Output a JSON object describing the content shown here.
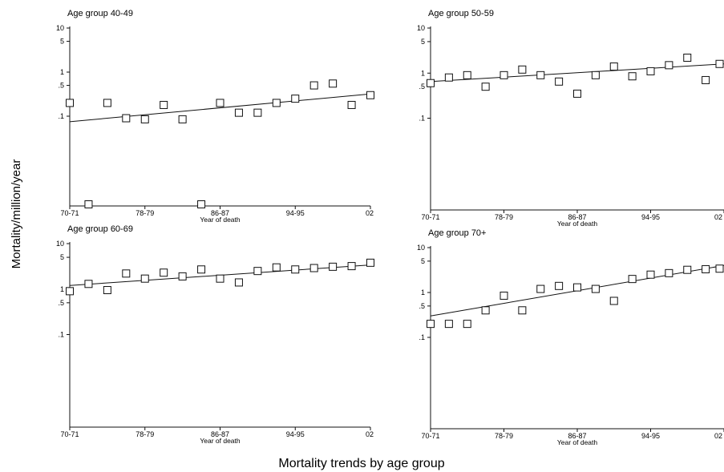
{
  "figure": {
    "ylabel": "Mortality/million/year",
    "caption": "Mortality trends by age group"
  },
  "chart_data": [
    {
      "type": "scatter",
      "title": "Age group 40-49",
      "xlabel": "Year of death",
      "x_ticks": [
        "70-71",
        "78-79",
        "86-87",
        "94-95",
        "02"
      ],
      "y_ticks": [
        "10",
        "5",
        "1",
        ".5",
        ".1"
      ],
      "y_scale": "log",
      "ylim": [
        0.001,
        10
      ],
      "grid": false,
      "x": [
        1,
        2,
        3,
        4,
        5,
        6,
        7,
        8,
        9,
        10,
        11,
        12,
        13,
        14,
        15,
        16,
        17
      ],
      "values": [
        0.2,
        0.001,
        0.2,
        0.09,
        0.085,
        0.18,
        0.085,
        0.001,
        0.2,
        0.12,
        0.12,
        0.2,
        0.25,
        0.5,
        0.55,
        0.18,
        0.3
      ],
      "trend": [
        0.075,
        0.32
      ]
    },
    {
      "type": "scatter",
      "title": "Age group 50-59",
      "xlabel": "Year of death",
      "x_ticks": [
        "70-71",
        "78-79",
        "86-87",
        "94-95",
        "02"
      ],
      "y_ticks": [
        "10",
        "5",
        "1",
        ".5",
        ".1"
      ],
      "y_scale": "log",
      "ylim": [
        0.001,
        10
      ],
      "grid": false,
      "x": [
        1,
        2,
        3,
        4,
        5,
        6,
        7,
        8,
        9,
        10,
        11,
        12,
        13,
        14,
        15,
        16,
        17
      ],
      "values": [
        0.6,
        0.8,
        0.9,
        0.5,
        0.9,
        1.2,
        0.9,
        0.65,
        0.35,
        0.9,
        1.4,
        0.85,
        1.1,
        1.5,
        2.2,
        0.7,
        1.6
      ],
      "trend": [
        0.65,
        1.6
      ]
    },
    {
      "type": "scatter",
      "title": "Age group 60-69",
      "xlabel": "Year of death",
      "x_ticks": [
        "70-71",
        "78-79",
        "86-87",
        "94-95",
        "02"
      ],
      "y_ticks": [
        "10",
        "5",
        "1",
        ".5",
        ".1"
      ],
      "y_scale": "log",
      "ylim": [
        0.001,
        10
      ],
      "grid": false,
      "x": [
        1,
        2,
        3,
        4,
        5,
        6,
        7,
        8,
        9,
        10,
        11,
        12,
        13,
        14,
        15,
        16,
        17
      ],
      "values": [
        0.9,
        1.3,
        0.95,
        2.2,
        1.7,
        2.3,
        1.9,
        2.7,
        1.7,
        1.4,
        2.5,
        3.0,
        2.7,
        2.9,
        3.1,
        3.2,
        3.8
      ],
      "trend": [
        1.2,
        3.4
      ]
    },
    {
      "type": "scatter",
      "title": "Age group 70+",
      "xlabel": "Year of death",
      "x_ticks": [
        "70-71",
        "78-79",
        "86-87",
        "94-95",
        "02"
      ],
      "y_ticks": [
        "10",
        "5",
        "1",
        ".5",
        ".1"
      ],
      "y_scale": "log",
      "ylim": [
        0.001,
        10
      ],
      "grid": false,
      "x": [
        1,
        2,
        3,
        4,
        5,
        6,
        7,
        8,
        9,
        10,
        11,
        12,
        13,
        14,
        15,
        16,
        17
      ],
      "values": [
        0.2,
        0.2,
        0.2,
        0.4,
        0.85,
        0.4,
        1.2,
        1.4,
        1.3,
        1.2,
        0.65,
        2.0,
        2.5,
        2.7,
        3.2,
        3.3,
        3.4
      ],
      "trend": [
        0.3,
        4.0
      ]
    }
  ]
}
